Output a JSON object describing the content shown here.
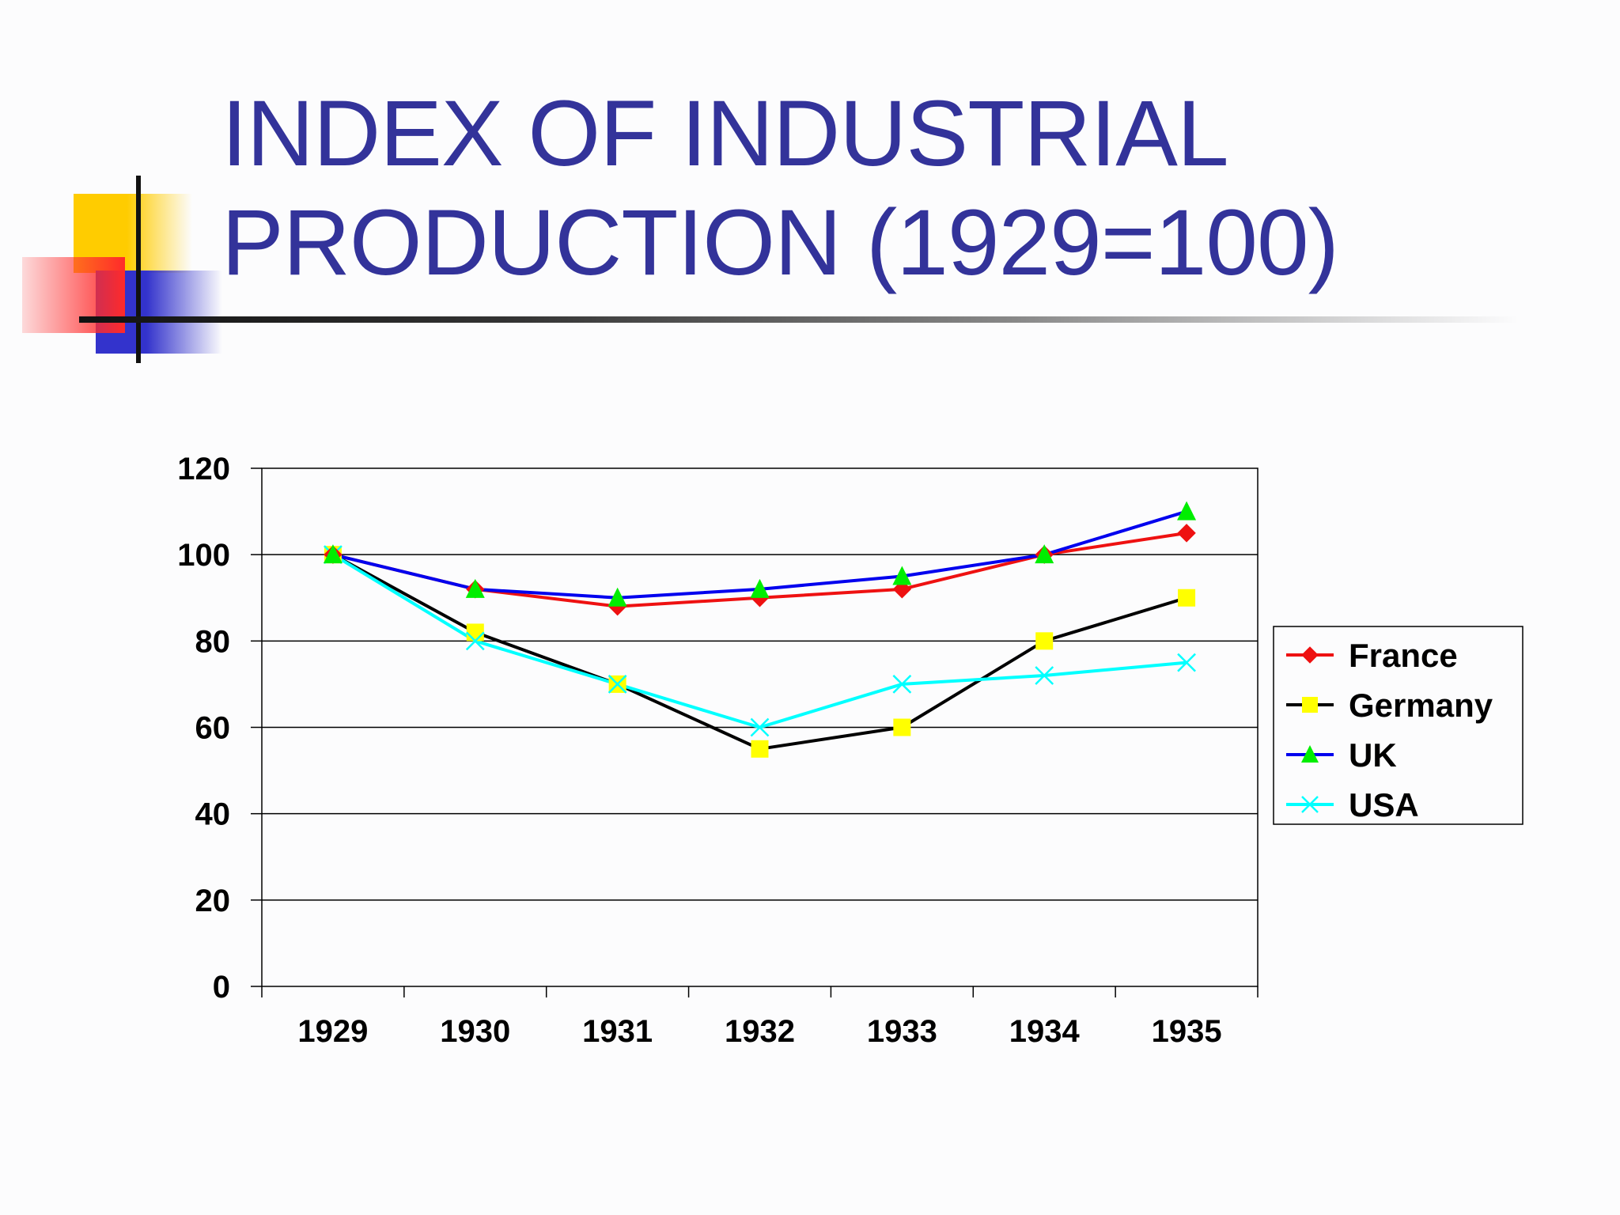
{
  "slide": {
    "title_line1": "INDEX OF INDUSTRIAL",
    "title_line2": "PRODUCTION (1929=100)"
  },
  "colors": {
    "title": "#33339a",
    "france": "#ee1111",
    "germany": "#000000",
    "germany_marker": "#ffff00",
    "uk": "#0000ee",
    "uk_marker": "#00ee00",
    "usa": "#00ffff"
  },
  "chart_data": {
    "type": "line",
    "title": "INDEX OF INDUSTRIAL PRODUCTION (1929=100)",
    "xlabel": "",
    "ylabel": "",
    "categories": [
      "1929",
      "1930",
      "1931",
      "1932",
      "1933",
      "1934",
      "1935"
    ],
    "ylim": [
      0,
      120
    ],
    "yticks": [
      "0",
      "20",
      "40",
      "60",
      "80",
      "100",
      "120"
    ],
    "grid": true,
    "legend_position": "right",
    "series": [
      {
        "name": "France",
        "line_color": "#ee1111",
        "marker": "diamond",
        "marker_color": "#ee1111",
        "values": [
          100,
          92,
          88,
          90,
          92,
          100,
          105
        ]
      },
      {
        "name": "Germany",
        "line_color": "#000000",
        "marker": "square",
        "marker_color": "#ffff00",
        "values": [
          100,
          82,
          70,
          55,
          60,
          80,
          90
        ]
      },
      {
        "name": "UK",
        "line_color": "#0000ee",
        "marker": "triangle",
        "marker_color": "#00ee00",
        "values": [
          100,
          92,
          90,
          92,
          95,
          100,
          110
        ]
      },
      {
        "name": "USA",
        "line_color": "#00ffff",
        "marker": "x",
        "marker_color": "#00ffff",
        "values": [
          100,
          80,
          70,
          60,
          70,
          72,
          75
        ]
      }
    ]
  }
}
